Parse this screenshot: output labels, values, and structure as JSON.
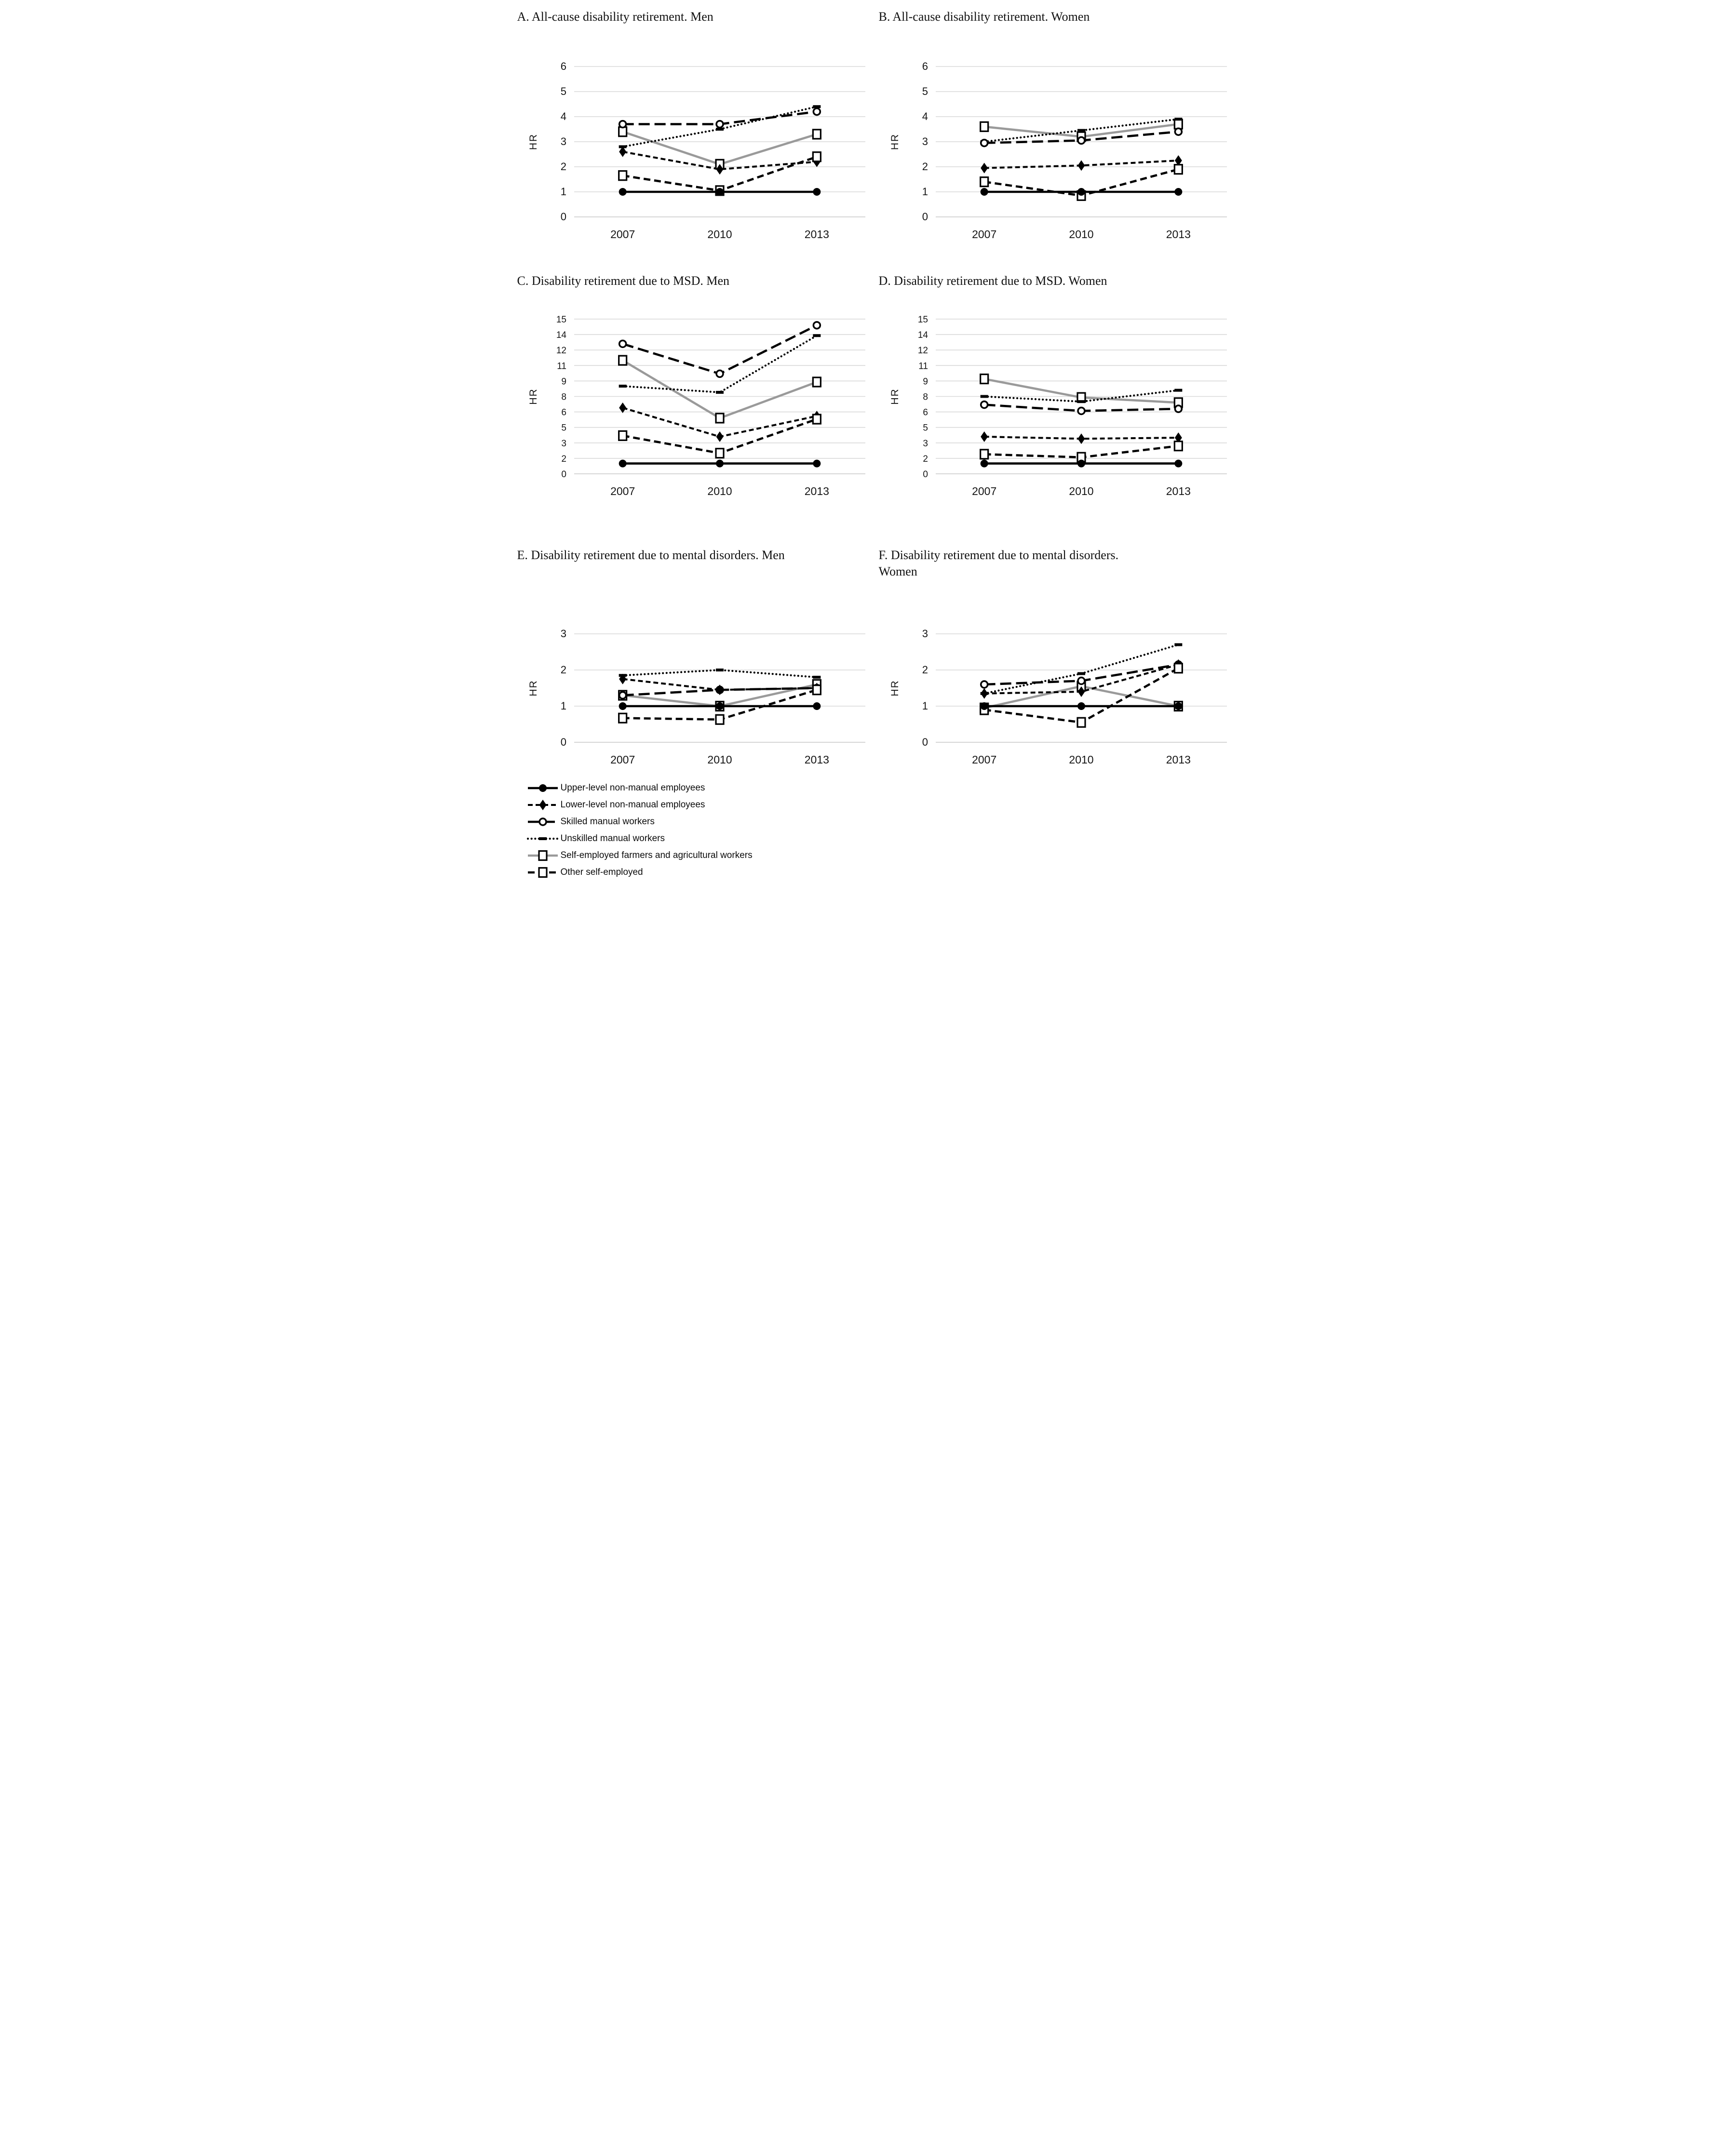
{
  "figure": {
    "background": "#ffffff",
    "ylabel": "HR",
    "years": [
      "2007",
      "2010",
      "2013"
    ]
  },
  "colors": {
    "series_black": "#000000",
    "series_gray": "#9a9a9a",
    "gridline": "#d9d9d9",
    "baseline": "#c9c9c9",
    "text": "#151515"
  },
  "legend": {
    "position": "bottom-left",
    "items": [
      {
        "key": "upper",
        "label": "Upper-level non-manual employees",
        "marker": "filled-circle",
        "line": "solid-black"
      },
      {
        "key": "lower",
        "label": "Lower-level non-manual employees",
        "marker": "filled-diamond",
        "line": "dashed-black"
      },
      {
        "key": "skilled",
        "label": "Skilled manual workers",
        "marker": "open-circle",
        "line": "long-dash-black"
      },
      {
        "key": "unskilled",
        "label": "Unskilled manual workers",
        "marker": "dash-tick",
        "line": "dotted-black"
      },
      {
        "key": "farmers",
        "label": "Self-employed farmers and agricultural workers",
        "marker": "open-square",
        "line": "solid-gray"
      },
      {
        "key": "other",
        "label": "Other self-employed",
        "marker": "open-square",
        "line": "dash-black"
      }
    ]
  },
  "chart_data": [
    {
      "id": "A",
      "type": "line",
      "title": "A. All-cause disability retirement. Men",
      "ylabel": "HR",
      "xlabel": "",
      "grid": true,
      "x": [
        "2007",
        "2010",
        "2013"
      ],
      "ylim": [
        0,
        6
      ],
      "ytick_values": [
        0,
        1,
        2,
        3,
        4,
        5,
        6
      ],
      "ytick_labels": [
        "0",
        "1",
        "2",
        "3",
        "4",
        "5",
        "6"
      ],
      "series": [
        {
          "key": "upper",
          "name": "Upper-level non-manual employees",
          "values": [
            1.0,
            1.0,
            1.0
          ]
        },
        {
          "key": "lower",
          "name": "Lower-level non-manual employees",
          "values": [
            2.6,
            1.9,
            2.2
          ]
        },
        {
          "key": "skilled",
          "name": "Skilled manual workers",
          "values": [
            3.7,
            3.7,
            4.2
          ]
        },
        {
          "key": "unskilled",
          "name": "Unskilled manual workers",
          "values": [
            2.8,
            3.5,
            4.4
          ]
        },
        {
          "key": "farmers",
          "name": "Self-employed farmers and agricultural workers",
          "values": [
            3.4,
            2.1,
            3.3
          ]
        },
        {
          "key": "other",
          "name": "Other self-employed",
          "values": [
            1.65,
            1.05,
            2.4
          ]
        }
      ]
    },
    {
      "id": "B",
      "type": "line",
      "title": "B. All-cause disability retirement. Women",
      "ylabel": "HR",
      "xlabel": "",
      "grid": true,
      "x": [
        "2007",
        "2010",
        "2013"
      ],
      "ylim": [
        0,
        6
      ],
      "ytick_values": [
        0,
        1,
        2,
        3,
        4,
        5,
        6
      ],
      "ytick_labels": [
        "0",
        "1",
        "2",
        "3",
        "4",
        "5",
        "6"
      ],
      "series": [
        {
          "key": "upper",
          "name": "Upper-level non-manual employees",
          "values": [
            1.0,
            1.0,
            1.0
          ]
        },
        {
          "key": "lower",
          "name": "Lower-level non-manual employees",
          "values": [
            1.95,
            2.05,
            2.25
          ]
        },
        {
          "key": "skilled",
          "name": "Skilled manual workers",
          "values": [
            2.95,
            3.05,
            3.4
          ]
        },
        {
          "key": "unskilled",
          "name": "Unskilled manual workers",
          "values": [
            3.0,
            3.45,
            3.9
          ]
        },
        {
          "key": "farmers",
          "name": "Self-employed farmers and agricultural workers",
          "values": [
            3.6,
            3.2,
            3.7
          ]
        },
        {
          "key": "other",
          "name": "Other self-employed",
          "values": [
            1.4,
            0.85,
            1.9
          ]
        }
      ]
    },
    {
      "id": "C",
      "type": "line",
      "title": "C. Disability retirement due to MSD. Men",
      "ylabel": "HR",
      "xlabel": "",
      "grid": true,
      "x": [
        "2007",
        "2010",
        "2013"
      ],
      "ylim": [
        0,
        15
      ],
      "ytick_values": [
        0,
        1.5,
        3,
        4.5,
        6,
        7.5,
        9,
        10.5,
        12,
        13.5,
        15
      ],
      "ytick_labels": [
        "0",
        "2",
        "3",
        "5",
        "6",
        "8",
        "9",
        "11",
        "12",
        "14",
        "15"
      ],
      "series": [
        {
          "key": "upper",
          "name": "Upper-level non-manual employees",
          "values": [
            1.0,
            1.0,
            1.0
          ]
        },
        {
          "key": "lower",
          "name": "Lower-level non-manual employees",
          "values": [
            6.4,
            3.6,
            5.6
          ]
        },
        {
          "key": "skilled",
          "name": "Skilled manual workers",
          "values": [
            12.6,
            9.7,
            14.4
          ]
        },
        {
          "key": "unskilled",
          "name": "Unskilled manual workers",
          "values": [
            8.5,
            7.9,
            13.4
          ]
        },
        {
          "key": "farmers",
          "name": "Self-employed farmers and agricultural workers",
          "values": [
            11.0,
            5.4,
            8.9
          ]
        },
        {
          "key": "other",
          "name": "Other self-employed",
          "values": [
            3.7,
            2.0,
            5.3
          ]
        }
      ]
    },
    {
      "id": "D",
      "type": "line",
      "title": "D. Disability retirement due to MSD. Women",
      "ylabel": "HR",
      "xlabel": "",
      "grid": true,
      "x": [
        "2007",
        "2010",
        "2013"
      ],
      "ylim": [
        0,
        15
      ],
      "ytick_values": [
        0,
        1.5,
        3,
        4.5,
        6,
        7.5,
        9,
        10.5,
        12,
        13.5,
        15
      ],
      "ytick_labels": [
        "0",
        "2",
        "3",
        "5",
        "6",
        "8",
        "9",
        "11",
        "12",
        "14",
        "15"
      ],
      "series": [
        {
          "key": "upper",
          "name": "Upper-level non-manual employees",
          "values": [
            1.0,
            1.0,
            1.0
          ]
        },
        {
          "key": "lower",
          "name": "Lower-level non-manual employees",
          "values": [
            3.6,
            3.4,
            3.5
          ]
        },
        {
          "key": "skilled",
          "name": "Skilled manual workers",
          "values": [
            6.7,
            6.1,
            6.3
          ]
        },
        {
          "key": "unskilled",
          "name": "Unskilled manual workers",
          "values": [
            7.5,
            7.0,
            8.1
          ]
        },
        {
          "key": "farmers",
          "name": "Self-employed farmers and agricultural workers",
          "values": [
            9.2,
            7.4,
            6.9
          ]
        },
        {
          "key": "other",
          "name": "Other self-employed",
          "values": [
            1.9,
            1.6,
            2.7
          ]
        }
      ]
    },
    {
      "id": "E",
      "type": "line",
      "title": "E. Disability retirement due to mental disorders. Men",
      "ylabel": "HR",
      "xlabel": "",
      "grid": true,
      "x": [
        "2007",
        "2010",
        "2013"
      ],
      "ylim": [
        0,
        3
      ],
      "ytick_values": [
        0,
        1,
        2,
        3
      ],
      "ytick_labels": [
        "0",
        "1",
        "2",
        "3"
      ],
      "series": [
        {
          "key": "upper",
          "name": "Upper-level non-manual employees",
          "values": [
            1.0,
            1.0,
            1.0
          ]
        },
        {
          "key": "lower",
          "name": "Lower-level non-manual employees",
          "values": [
            1.75,
            1.45,
            1.5
          ]
        },
        {
          "key": "skilled",
          "name": "Skilled manual workers",
          "values": [
            1.3,
            1.45,
            1.5
          ]
        },
        {
          "key": "unskilled",
          "name": "Unskilled manual workers",
          "values": [
            1.85,
            2.0,
            1.8
          ]
        },
        {
          "key": "farmers",
          "name": "Self-employed farmers and agricultural workers",
          "values": [
            1.3,
            1.0,
            1.6
          ]
        },
        {
          "key": "other",
          "name": "Other self-employed",
          "values": [
            0.67,
            0.63,
            1.45
          ]
        }
      ]
    },
    {
      "id": "F",
      "type": "line",
      "title": "F. Disability retirement due to mental disorders.\nWomen",
      "ylabel": "HR",
      "xlabel": "",
      "grid": true,
      "x": [
        "2007",
        "2010",
        "2013"
      ],
      "ylim": [
        0,
        3
      ],
      "ytick_values": [
        0,
        1,
        2,
        3
      ],
      "ytick_labels": [
        "0",
        "1",
        "2",
        "3"
      ],
      "series": [
        {
          "key": "upper",
          "name": "Upper-level non-manual employees",
          "values": [
            1.0,
            1.0,
            1.0
          ]
        },
        {
          "key": "lower",
          "name": "Lower-level non-manual employees",
          "values": [
            1.35,
            1.4,
            2.15
          ]
        },
        {
          "key": "skilled",
          "name": "Skilled manual workers",
          "values": [
            1.6,
            1.7,
            2.15
          ]
        },
        {
          "key": "unskilled",
          "name": "Unskilled manual workers",
          "values": [
            1.35,
            1.9,
            2.7
          ]
        },
        {
          "key": "farmers",
          "name": "Self-employed farmers and agricultural workers",
          "values": [
            0.95,
            1.55,
            1.0
          ]
        },
        {
          "key": "other",
          "name": "Other self-employed",
          "values": [
            0.9,
            0.55,
            2.05
          ]
        }
      ]
    }
  ]
}
